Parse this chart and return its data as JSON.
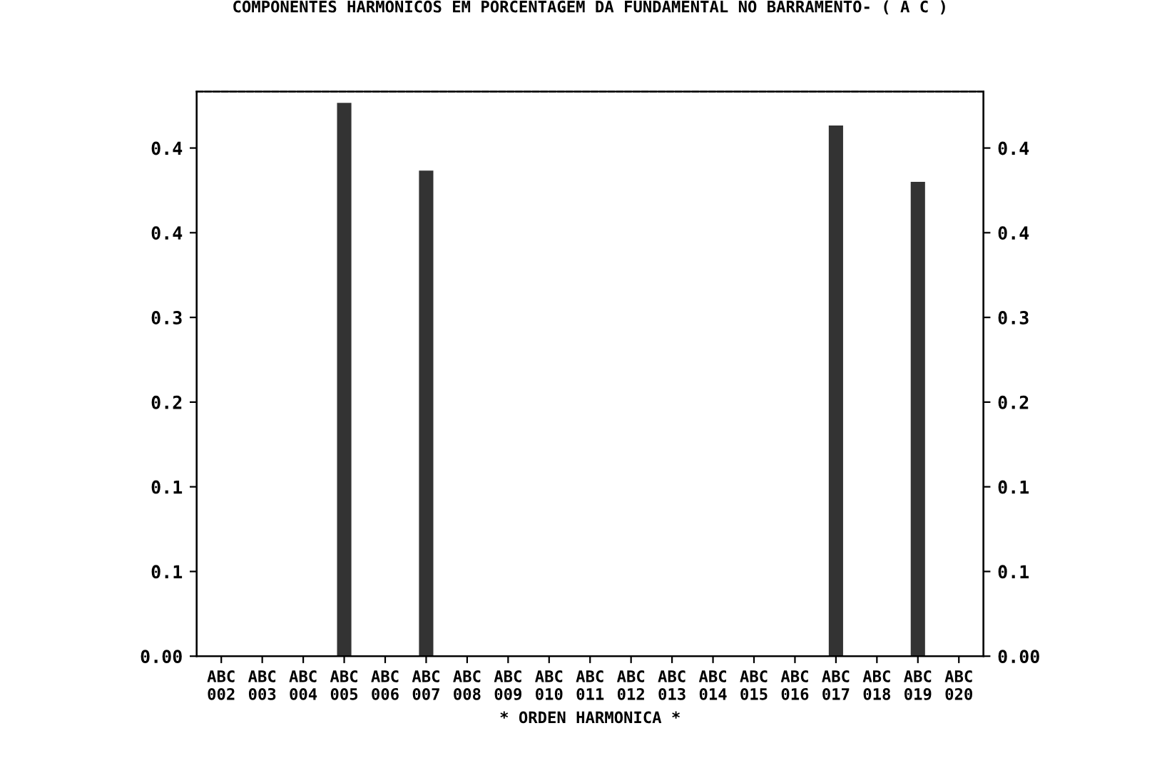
{
  "chart_data": {
    "type": "bar",
    "title": "COMPONENTES HARMONICOS EM PORCENTAGEM DA FUNDAMENTAL NO BARRAMENTO- ( A C )",
    "xlabel": "* ORDEN HARMONICA *",
    "categories": [
      "ABC\n002",
      "ABC\n003",
      "ABC\n004",
      "ABC\n005",
      "ABC\n006",
      "ABC\n007",
      "ABC\n008",
      "ABC\n009",
      "ABC\n010",
      "ABC\n011",
      "ABC\n012",
      "ABC\n013",
      "ABC\n014",
      "ABC\n015",
      "ABC\n016",
      "ABC\n017",
      "ABC\n018",
      "ABC\n019",
      "ABC\n020"
    ],
    "values": [
      0,
      0,
      0,
      0.49,
      0,
      0.43,
      0,
      0,
      0,
      0,
      0,
      0,
      0,
      0,
      0,
      0.47,
      0,
      0.42,
      0
    ],
    "color": "#333333",
    "ylim": [
      0,
      0.5
    ],
    "yticks": [
      {
        "value": 0,
        "label": "0.00"
      },
      {
        "value": 0.075,
        "label": "0.1"
      },
      {
        "value": 0.15,
        "label": "0.1"
      },
      {
        "value": 0.225,
        "label": "0.2"
      },
      {
        "value": 0.3,
        "label": "0.3"
      },
      {
        "value": 0.375,
        "label": "0.4"
      },
      {
        "value": 0.45,
        "label": "0.4"
      }
    ],
    "y2lim": [
      0,
      0.5
    ],
    "y2ticks": [
      {
        "value": 0,
        "label": "0.00"
      },
      {
        "value": 0.075,
        "label": "0.1"
      },
      {
        "value": 0.15,
        "label": "0.1"
      },
      {
        "value": 0.225,
        "label": "0.2"
      },
      {
        "value": 0.3,
        "label": "0.3"
      },
      {
        "value": 0.375,
        "label": "0.4"
      },
      {
        "value": 0.45,
        "label": "0.4"
      }
    ],
    "grid": false,
    "legend": false
  }
}
